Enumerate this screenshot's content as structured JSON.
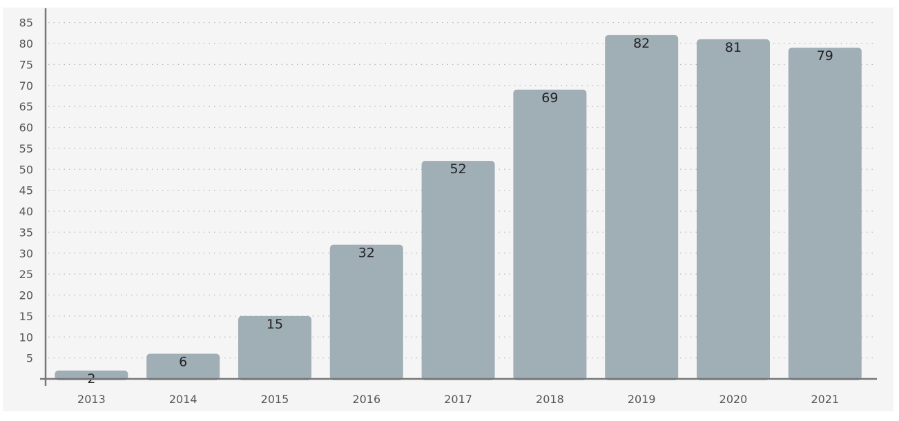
{
  "colors": {
    "background": "#f6f5f5",
    "bar": "#a0aeb6",
    "axis": "#777777"
  },
  "chart_data": {
    "type": "bar",
    "title": "",
    "xlabel": "",
    "ylabel": "",
    "categories": [
      "2013",
      "2014",
      "2015",
      "2016",
      "2017",
      "2018",
      "2019",
      "2020",
      "2021"
    ],
    "values": [
      2,
      6,
      15,
      32,
      52,
      69,
      82,
      81,
      79
    ],
    "ylim": [
      0,
      88
    ],
    "yticks": [
      5,
      10,
      15,
      20,
      25,
      30,
      35,
      40,
      45,
      50,
      55,
      60,
      65,
      70,
      75,
      80,
      85
    ],
    "data_labels": true,
    "grid": "horizontal dotted",
    "legend": "none"
  }
}
